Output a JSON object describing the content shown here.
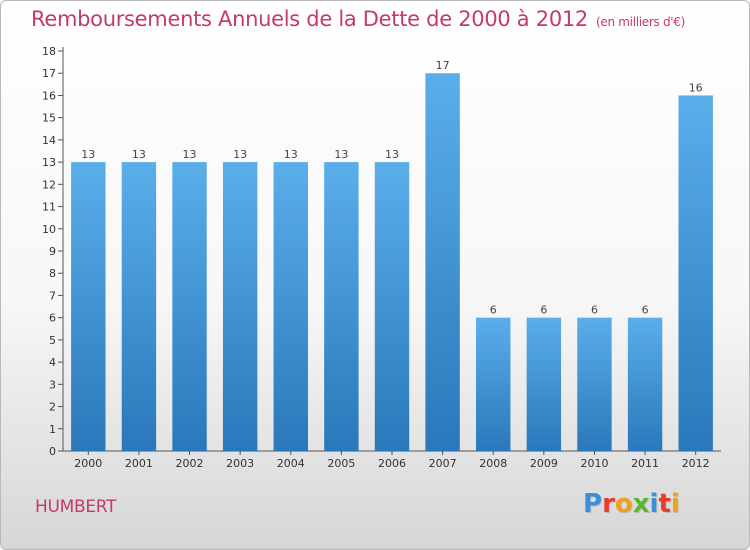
{
  "header": {
    "title": "Remboursements Annuels de la Dette de 2000 à 2012",
    "unit": "(en milliers d'€)"
  },
  "footer": {
    "town": "HUMBERT",
    "logo_letters": [
      "P",
      "r",
      "o",
      "x",
      "i",
      "t",
      "i"
    ],
    "logo_colors": [
      "#3b8fd6",
      "#e63c2e",
      "#f0a11c",
      "#5bb531",
      "#3b8fd6",
      "#e63c2e",
      "#f0a11c"
    ]
  },
  "chart_data": {
    "type": "bar",
    "title": "Remboursements Annuels de la Dette de 2000 à 2012",
    "categories": [
      "2000",
      "2001",
      "2002",
      "2003",
      "2004",
      "2005",
      "2006",
      "2007",
      "2008",
      "2009",
      "2010",
      "2011",
      "2012"
    ],
    "values": [
      13,
      13,
      13,
      13,
      13,
      13,
      13,
      17,
      6,
      6,
      6,
      6,
      16
    ],
    "data_labels": [
      "13",
      "13",
      "13",
      "13",
      "13",
      "13",
      "13",
      "17",
      "6",
      "6",
      "6",
      "6",
      "16"
    ],
    "y_ticks": [
      0,
      1,
      2,
      3,
      4,
      5,
      6,
      7,
      8,
      9,
      10,
      11,
      12,
      13,
      14,
      15,
      16,
      17,
      18
    ],
    "ylim": [
      0,
      18
    ],
    "grid": false,
    "bar_color_top": "#5aaeea",
    "bar_color_bottom": "#2a78bb"
  }
}
